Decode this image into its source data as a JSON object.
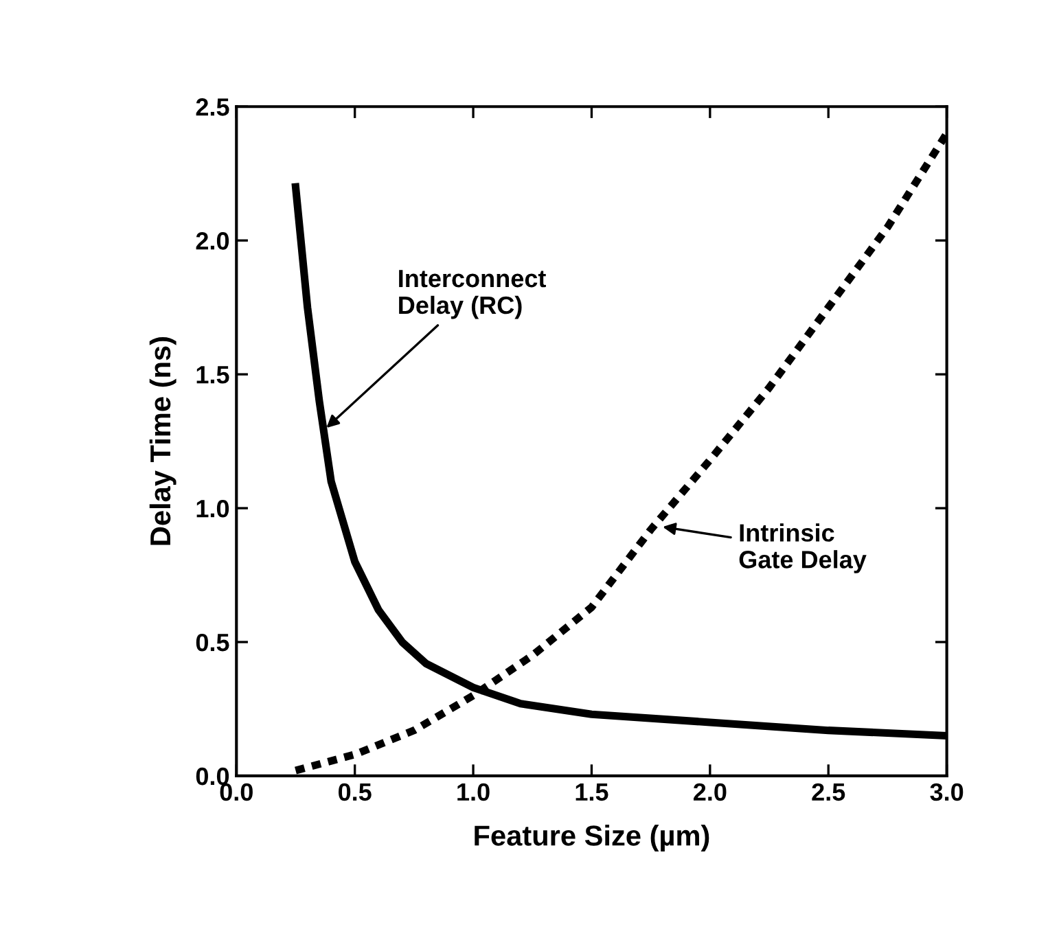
{
  "chart_data": {
    "type": "line",
    "xlabel": "Feature Size (µm)",
    "ylabel": "Delay Time (ns)",
    "xlim": [
      0,
      3
    ],
    "ylim": [
      0,
      2.5
    ],
    "xticks": [
      {
        "value": 0,
        "label": "0.0"
      },
      0.5,
      {
        "value": 1,
        "label": "1.0"
      },
      1.5,
      {
        "value": 2,
        "label": "2.0"
      },
      2.5,
      {
        "value": 3,
        "label": "3.0"
      }
    ],
    "yticks": [
      {
        "value": 0,
        "label": "0.0"
      },
      0.5,
      {
        "value": 1,
        "label": "1.0"
      },
      1.5,
      {
        "value": 2,
        "label": "2.0"
      },
      2.5
    ],
    "grid": false,
    "legend": false,
    "marker": "none",
    "series": [
      {
        "color": "#000000",
        "line_style": "solid",
        "x": [
          0.25,
          0.3,
          0.35,
          0.4,
          0.5,
          0.6,
          0.7,
          0.8,
          1.0,
          1.2,
          1.5,
          2.0,
          2.5,
          3.0
        ],
        "values": [
          2.2,
          1.75,
          1.4,
          1.1,
          0.8,
          0.62,
          0.5,
          0.42,
          0.33,
          0.27,
          0.23,
          0.2,
          0.17,
          0.15
        ]
      },
      {
        "color": "#000000",
        "line_style": "dashed",
        "x": [
          0.25,
          0.5,
          0.75,
          1.0,
          1.25,
          1.5,
          1.75,
          2.0,
          2.25,
          2.5,
          2.75,
          3.0
        ],
        "values": [
          0.02,
          0.08,
          0.17,
          0.3,
          0.45,
          0.63,
          0.92,
          1.18,
          1.45,
          1.75,
          2.05,
          2.4
        ]
      }
    ],
    "annotations": [
      {
        "text": "Interconnect\nDelay (RC)",
        "x": 0.38,
        "y": 1.3
      },
      {
        "text": "Intrinsic\nGate Delay",
        "x": 1.8,
        "y": 0.93
      }
    ]
  }
}
